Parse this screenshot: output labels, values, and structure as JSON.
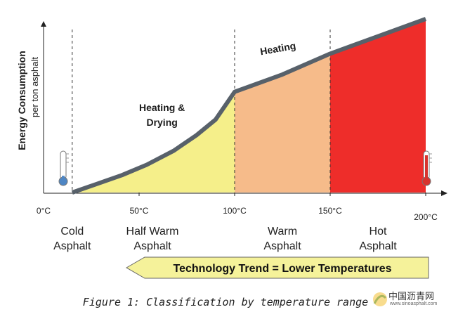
{
  "chart_data": {
    "type": "area",
    "title": "",
    "ylabel": "Energy Consumption",
    "ylabel_sub": "per ton asphalt",
    "xlabel": "",
    "x_ticks": [
      "0°C",
      "50°C",
      "100°C",
      "150°C",
      "200°C"
    ],
    "x_range": [
      0,
      200
    ],
    "y_range": [
      0,
      100
    ],
    "curve": [
      {
        "x": 15,
        "y": 0
      },
      {
        "x": 28,
        "y": 5
      },
      {
        "x": 41,
        "y": 10
      },
      {
        "x": 54,
        "y": 16
      },
      {
        "x": 68,
        "y": 24
      },
      {
        "x": 80,
        "y": 33
      },
      {
        "x": 90,
        "y": 42
      },
      {
        "x": 100,
        "y": 58
      },
      {
        "x": 125,
        "y": 68
      },
      {
        "x": 150,
        "y": 80
      },
      {
        "x": 175,
        "y": 90
      },
      {
        "x": 200,
        "y": 100
      }
    ],
    "regions": [
      {
        "from": 15,
        "to": 100,
        "color": "#f5ef8a"
      },
      {
        "from": 100,
        "to": 150,
        "color": "#f6bb8a"
      },
      {
        "from": 150,
        "to": 200,
        "color": "#ee2d2a"
      }
    ],
    "dividers": [
      15,
      100,
      150
    ],
    "categories": [
      {
        "name": "Cold\nAsphalt",
        "x": 15
      },
      {
        "name": "Half Warm\nAsphalt",
        "x": 57
      },
      {
        "name": "Warm\nAsphalt",
        "x": 125
      },
      {
        "name": "Hot\nAsphalt",
        "x": 175
      }
    ],
    "annotations": [
      {
        "text": "Heating &\nDrying",
        "x": 62,
        "y": 47
      },
      {
        "text": "Heating",
        "x": 123,
        "y": 81
      }
    ],
    "line_color": "#58616a",
    "trend_label": "Technology Trend = Lower Temperatures",
    "trend_color": "#f5f29a",
    "thermometer_cold_color": "#4e86c4",
    "thermometer_hot_color": "#d8342e"
  },
  "caption": "Figure 1: Classification by temperature range",
  "watermark": {
    "title": "中国沥青网",
    "url": "www.sinoasphalt.com"
  }
}
